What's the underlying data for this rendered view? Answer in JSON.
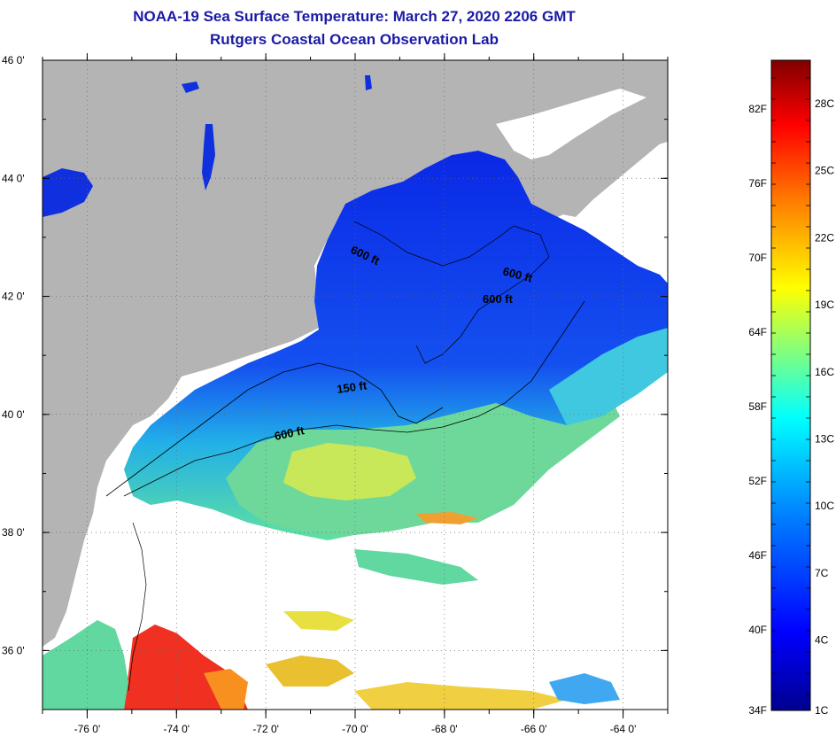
{
  "header": {
    "title": "NOAA-19 Sea Surface Temperature:  March 27, 2020 2206 GMT",
    "subtitle": "Rutgers Coastal Ocean Observation Lab"
  },
  "map": {
    "lat_range": [
      35,
      46
    ],
    "lon_range": [
      -77,
      -63
    ],
    "lat_ticks": [
      {
        "value": 46,
        "label": "46 0'"
      },
      {
        "value": 44,
        "label": "44 0'"
      },
      {
        "value": 42,
        "label": "42 0'"
      },
      {
        "value": 40,
        "label": "40 0'"
      },
      {
        "value": 38,
        "label": "38 0'"
      },
      {
        "value": 36,
        "label": "36 0'"
      }
    ],
    "lon_ticks": [
      {
        "value": -76,
        "label": "-76 0'"
      },
      {
        "value": -74,
        "label": "-74 0'"
      },
      {
        "value": -72,
        "label": "-72 0'"
      },
      {
        "value": -70,
        "label": "-70 0'"
      },
      {
        "value": -68,
        "label": "-68 0'"
      },
      {
        "value": -66,
        "label": "-66 0'"
      },
      {
        "value": -64,
        "label": "-64 0'"
      }
    ],
    "contour_labels": [
      "600 ft",
      "600 ft",
      "600 ft",
      "150 ft",
      "600 ft"
    ],
    "colors": {
      "land": "#b4b4b4",
      "no_data": "#ffffff",
      "grid": "#555555"
    }
  },
  "colorbar": {
    "fahrenheit_labels": [
      "82F",
      "76F",
      "70F",
      "64F",
      "58F",
      "52F",
      "46F",
      "40F",
      "34F"
    ],
    "celsius_labels": [
      "28C",
      "25C",
      "22C",
      "19C",
      "16C",
      "13C",
      "10C",
      "7C",
      "4C",
      "1C"
    ],
    "colors": [
      "#00008f",
      "#0000ff",
      "#0080ff",
      "#00ffff",
      "#80ff80",
      "#ffff00",
      "#ff8000",
      "#ff0000",
      "#800000"
    ]
  }
}
